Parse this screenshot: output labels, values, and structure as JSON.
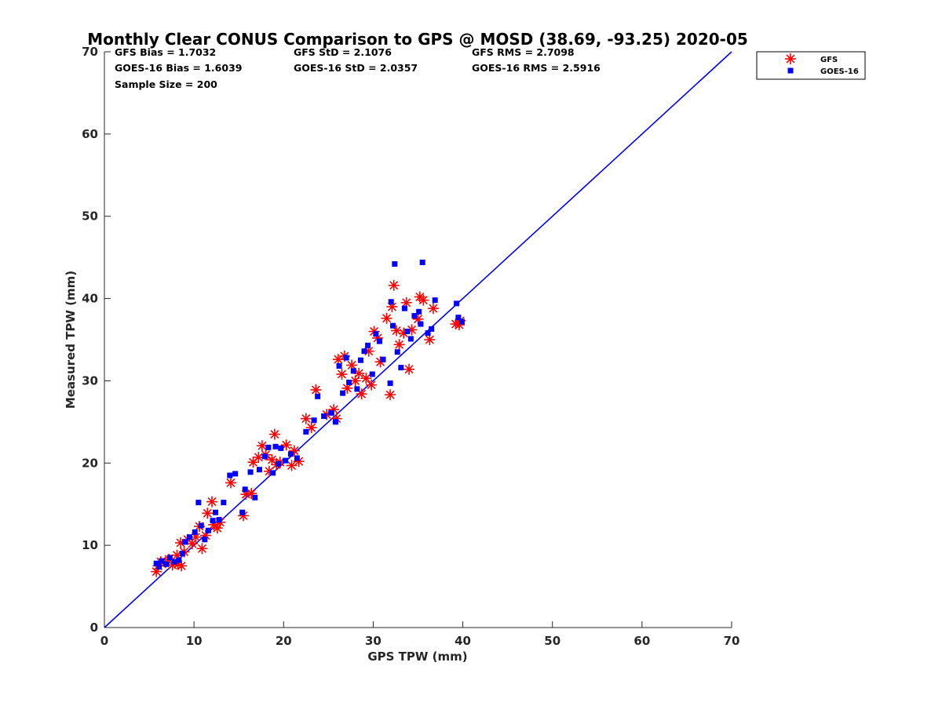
{
  "chart_data": {
    "type": "scatter",
    "title": "Monthly Clear CONUS Comparison to GPS @ MOSD (38.69, -93.25) 2020-05",
    "xlabel": "GPS TPW (mm)",
    "ylabel": "Measured TPW (mm)",
    "xlim": [
      0,
      70
    ],
    "ylim": [
      0,
      70
    ],
    "x_ticks": [
      "0",
      "10",
      "20",
      "30",
      "40",
      "50",
      "60",
      "70"
    ],
    "y_ticks": [
      "0",
      "10",
      "20",
      "30",
      "40",
      "50",
      "60",
      "70"
    ],
    "grid": false,
    "legend_position": "top-right",
    "reference_line": {
      "from": [
        0,
        0
      ],
      "to": [
        70,
        70
      ],
      "color": "#0000ff"
    },
    "stats": {
      "gfs_bias": "GFS Bias = 1.7032",
      "goes_bias": "GOES-16 Bias = 1.6039",
      "sample_size": "Sample Size = 200",
      "gfs_std": "GFS StD = 2.1076",
      "goes_std": "GOES-16 StD = 2.0357",
      "gfs_rms": "GFS RMS = 2.7098",
      "goes_rms": "GOES-16 RMS = 2.5916"
    },
    "series": [
      {
        "name": "GFS",
        "marker": "asterisk",
        "color": "#ff0000",
        "points": [
          [
            5.8,
            6.8
          ],
          [
            6.0,
            7.5
          ],
          [
            6.3,
            8.0
          ],
          [
            6.8,
            7.9
          ],
          [
            7.2,
            8.3
          ],
          [
            7.6,
            7.6
          ],
          [
            8.2,
            7.7
          ],
          [
            8.6,
            7.5
          ],
          [
            8.1,
            8.8
          ],
          [
            8.9,
            9.2
          ],
          [
            8.5,
            10.3
          ],
          [
            9.3,
            10.7
          ],
          [
            9.8,
            10.2
          ],
          [
            10.2,
            11.0
          ],
          [
            10.6,
            12.3
          ],
          [
            10.9,
            9.6
          ],
          [
            11.3,
            11.2
          ],
          [
            11.5,
            13.9
          ],
          [
            12.0,
            15.3
          ],
          [
            12.2,
            12.5
          ],
          [
            12.6,
            12.1
          ],
          [
            12.9,
            12.8
          ],
          [
            14.1,
            17.6
          ],
          [
            15.5,
            13.6
          ],
          [
            15.8,
            16.2
          ],
          [
            16.4,
            16.3
          ],
          [
            16.6,
            20.1
          ],
          [
            17.2,
            20.7
          ],
          [
            17.6,
            22.1
          ],
          [
            18.0,
            21.0
          ],
          [
            18.4,
            19.0
          ],
          [
            18.7,
            20.4
          ],
          [
            19.0,
            23.5
          ],
          [
            19.2,
            19.8
          ],
          [
            19.6,
            20.1
          ],
          [
            20.3,
            22.2
          ],
          [
            20.9,
            19.7
          ],
          [
            21.2,
            21.5
          ],
          [
            21.7,
            20.2
          ],
          [
            22.5,
            25.4
          ],
          [
            23.1,
            24.3
          ],
          [
            23.6,
            28.9
          ],
          [
            24.8,
            25.9
          ],
          [
            25.6,
            26.5
          ],
          [
            25.9,
            25.4
          ],
          [
            26.1,
            32.6
          ],
          [
            26.5,
            30.8
          ],
          [
            26.8,
            33.0
          ],
          [
            27.1,
            29.1
          ],
          [
            27.6,
            31.9
          ],
          [
            28.0,
            30.0
          ],
          [
            28.4,
            30.9
          ],
          [
            28.7,
            28.4
          ],
          [
            29.2,
            30.3
          ],
          [
            29.5,
            33.6
          ],
          [
            29.8,
            29.5
          ],
          [
            30.1,
            36.0
          ],
          [
            30.5,
            35.2
          ],
          [
            30.8,
            32.3
          ],
          [
            31.5,
            37.6
          ],
          [
            31.9,
            28.3
          ],
          [
            32.1,
            39.0
          ],
          [
            32.3,
            41.6
          ],
          [
            32.6,
            36.1
          ],
          [
            32.9,
            34.4
          ],
          [
            33.4,
            35.8
          ],
          [
            33.7,
            39.5
          ],
          [
            34.0,
            31.4
          ],
          [
            34.3,
            36.2
          ],
          [
            35.0,
            37.5
          ],
          [
            35.2,
            40.2
          ],
          [
            35.6,
            39.8
          ],
          [
            36.3,
            35.0
          ],
          [
            36.7,
            38.8
          ],
          [
            39.2,
            36.9
          ],
          [
            39.6,
            36.8
          ],
          [
            39.7,
            37.3
          ]
        ]
      },
      {
        "name": "GOES-16",
        "marker": "square",
        "color": "#0000ff",
        "points": [
          [
            5.8,
            7.8
          ],
          [
            6.1,
            7.4
          ],
          [
            6.4,
            8.1
          ],
          [
            6.9,
            7.7
          ],
          [
            7.3,
            8.5
          ],
          [
            7.8,
            8.0
          ],
          [
            8.3,
            8.2
          ],
          [
            8.7,
            9.0
          ],
          [
            9.0,
            10.4
          ],
          [
            9.5,
            11.0
          ],
          [
            10.1,
            11.6
          ],
          [
            10.5,
            15.2
          ],
          [
            10.8,
            12.4
          ],
          [
            11.2,
            10.7
          ],
          [
            11.6,
            11.8
          ],
          [
            12.1,
            13.0
          ],
          [
            12.4,
            14.0
          ],
          [
            12.8,
            13.1
          ],
          [
            13.3,
            15.2
          ],
          [
            14.0,
            18.5
          ],
          [
            14.6,
            18.7
          ],
          [
            15.4,
            14.0
          ],
          [
            15.7,
            16.8
          ],
          [
            16.3,
            18.9
          ],
          [
            16.8,
            15.8
          ],
          [
            17.3,
            19.2
          ],
          [
            17.9,
            20.8
          ],
          [
            18.3,
            21.9
          ],
          [
            18.8,
            18.8
          ],
          [
            19.1,
            22.0
          ],
          [
            19.4,
            19.9
          ],
          [
            19.7,
            21.8
          ],
          [
            20.2,
            20.3
          ],
          [
            20.8,
            21.1
          ],
          [
            21.5,
            20.6
          ],
          [
            22.5,
            23.8
          ],
          [
            23.4,
            25.2
          ],
          [
            23.8,
            28.1
          ],
          [
            24.5,
            25.7
          ],
          [
            25.3,
            26.1
          ],
          [
            25.8,
            25.0
          ],
          [
            26.2,
            31.8
          ],
          [
            26.6,
            28.5
          ],
          [
            27.0,
            32.8
          ],
          [
            27.3,
            29.8
          ],
          [
            27.8,
            31.2
          ],
          [
            28.2,
            29.0
          ],
          [
            28.6,
            32.5
          ],
          [
            29.0,
            33.6
          ],
          [
            29.4,
            34.3
          ],
          [
            29.9,
            30.8
          ],
          [
            30.3,
            35.7
          ],
          [
            30.7,
            34.8
          ],
          [
            31.1,
            32.6
          ],
          [
            31.9,
            29.7
          ],
          [
            32.0,
            39.6
          ],
          [
            32.2,
            36.7
          ],
          [
            32.4,
            44.2
          ],
          [
            32.7,
            33.5
          ],
          [
            33.1,
            31.6
          ],
          [
            33.5,
            38.8
          ],
          [
            33.8,
            36.0
          ],
          [
            34.2,
            35.1
          ],
          [
            34.6,
            37.9
          ],
          [
            35.1,
            38.4
          ],
          [
            35.3,
            36.9
          ],
          [
            35.5,
            44.4
          ],
          [
            36.1,
            35.8
          ],
          [
            36.5,
            36.3
          ],
          [
            36.9,
            39.8
          ],
          [
            39.3,
            39.4
          ],
          [
            39.5,
            37.7
          ],
          [
            39.9,
            37.2
          ]
        ]
      }
    ]
  }
}
